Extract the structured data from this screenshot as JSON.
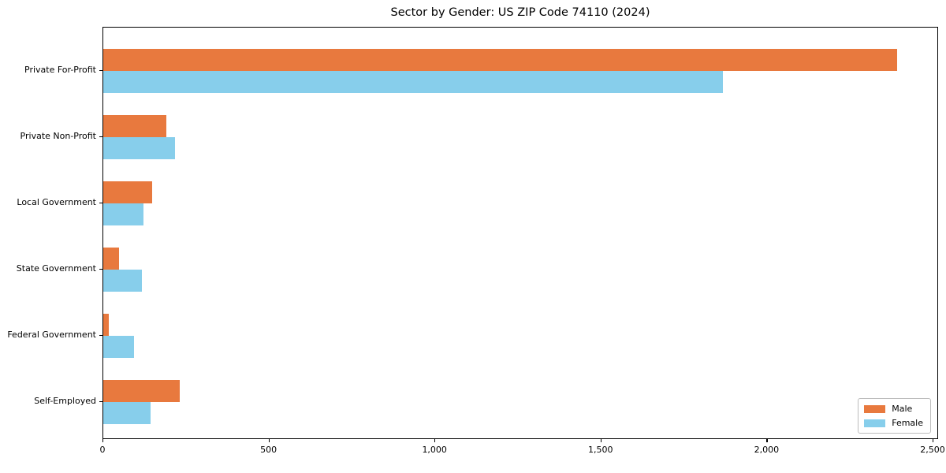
{
  "title": "Sector by Gender: US ZIP Code 74110 (2024)",
  "chart_data": {
    "type": "bar",
    "orientation": "horizontal",
    "title": "Sector by Gender: US ZIP Code 74110 (2024)",
    "xlabel": "",
    "ylabel": "",
    "categories": [
      "Private For-Profit",
      "Private Non-Profit",
      "Local Government",
      "State Government",
      "Federal Government",
      "Self-Employed"
    ],
    "series": [
      {
        "name": "Male",
        "color": "#e8793e",
        "values": [
          2390,
          190,
          148,
          48,
          17,
          230
        ]
      },
      {
        "name": "Female",
        "color": "#87ceeb",
        "values": [
          1865,
          215,
          122,
          116,
          93,
          142
        ]
      }
    ],
    "xlim": [
      0,
      2500
    ],
    "xticks": [
      0,
      500,
      1000,
      1500,
      2000,
      2500
    ],
    "xtick_labels": [
      "0",
      "500",
      "1,000",
      "1,500",
      "2,000",
      "2,500"
    ],
    "grid": false,
    "legend_position": "lower right"
  }
}
